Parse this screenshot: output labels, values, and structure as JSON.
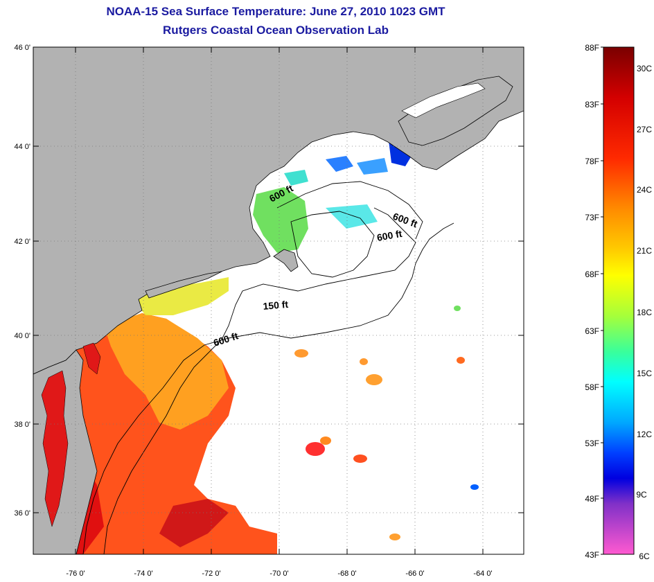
{
  "title": {
    "line1": "NOAA-15 Sea Surface Temperature:  June 27, 2010 1023 GMT",
    "line2": "Rutgers Coastal Ocean Observation Lab"
  },
  "map": {
    "lat_labels": [
      "46 0'",
      "44 0'",
      "42 0'",
      "40 0'",
      "38 0'",
      "36 0'"
    ],
    "lon_labels": [
      "-76 0'",
      "-74 0'",
      "-72 0'",
      "-70 0'",
      "-68 0'",
      "-66 0'",
      "-64 0'"
    ],
    "contour_labels": [
      "600 ft",
      "600 ft",
      "600 ft",
      "150 ft",
      "600 ft"
    ],
    "colors": {
      "land": "#b2b2b2",
      "ocean": "#ffffff",
      "title": "#1a1aa0"
    }
  },
  "colorbar": {
    "f_labels": [
      "88F",
      "83F",
      "78F",
      "73F",
      "68F",
      "63F",
      "58F",
      "53F",
      "48F",
      "43F"
    ],
    "c_labels": [
      "30C",
      "27C",
      "24C",
      "21C",
      "18C",
      "15C",
      "12C",
      "9C",
      "6C"
    ]
  }
}
